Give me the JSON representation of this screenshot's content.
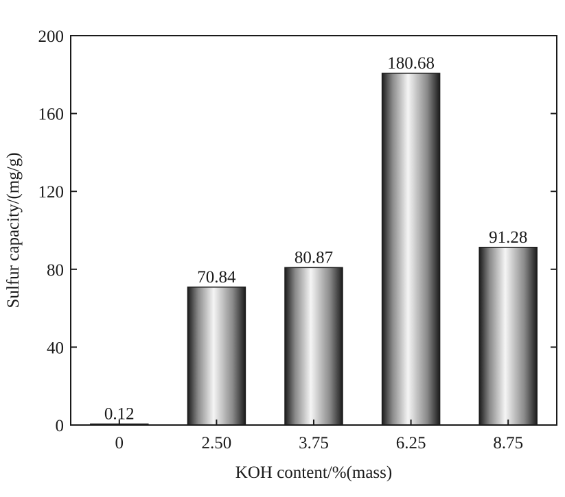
{
  "chart_data": {
    "type": "bar",
    "categories": [
      "0",
      "2.50",
      "3.75",
      "6.25",
      "8.75"
    ],
    "values": [
      0.12,
      70.84,
      80.87,
      180.68,
      91.28
    ],
    "data_labels": [
      "0.12",
      "70.84",
      "80.87",
      "180.68",
      "91.28"
    ],
    "xlabel": "KOH content/%(mass)",
    "ylabel": "Sulfur capacity/(mg/g)",
    "ylim": [
      0,
      200
    ],
    "yticks": [
      0,
      40,
      80,
      120,
      160,
      200
    ],
    "ytick_labels": [
      "0",
      "40",
      "80",
      "120",
      "160",
      "200"
    ],
    "grid": false,
    "legend": "none",
    "colors": {
      "bar_dark": "#1c1c1c",
      "bar_mid": "#8a8a8a",
      "bar_light": "#f5f5f5",
      "axis": "#1a1a1a"
    }
  }
}
